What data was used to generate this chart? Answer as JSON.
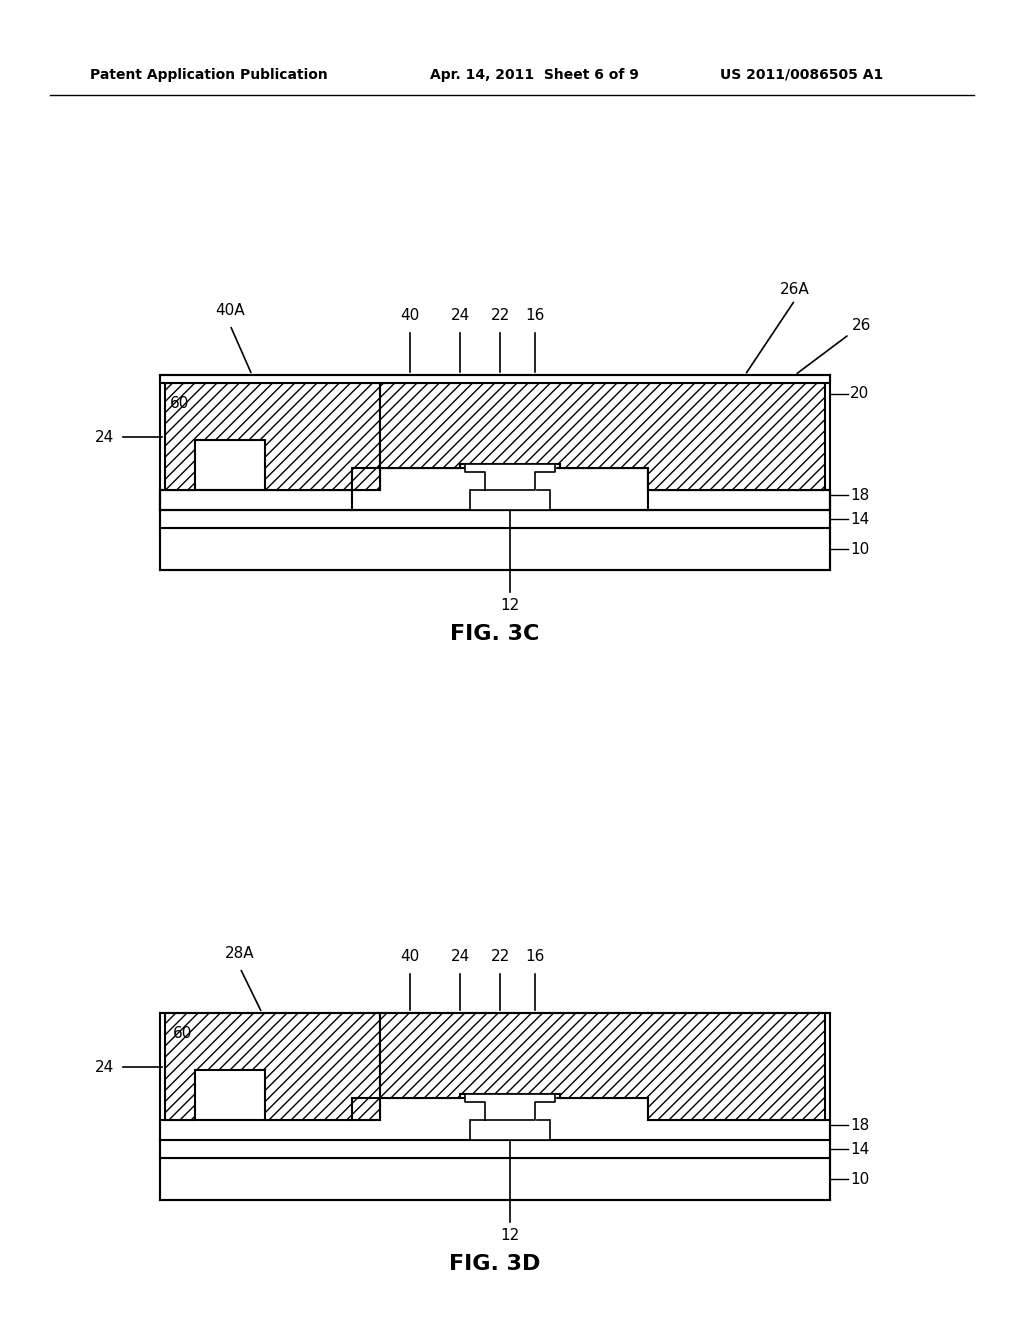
{
  "bg_color": "#ffffff",
  "header_left": "Patent Application Publication",
  "header_center": "Apr. 14, 2011  Sheet 6 of 9",
  "header_right": "US 2011/0086505 A1",
  "fig3c_title": "FIG. 3C",
  "fig3d_title": "FIG. 3D",
  "hatch_pattern": "///",
  "line_color": "#000000",
  "hatch_color": "#000000",
  "fill_color": "#ffffff"
}
